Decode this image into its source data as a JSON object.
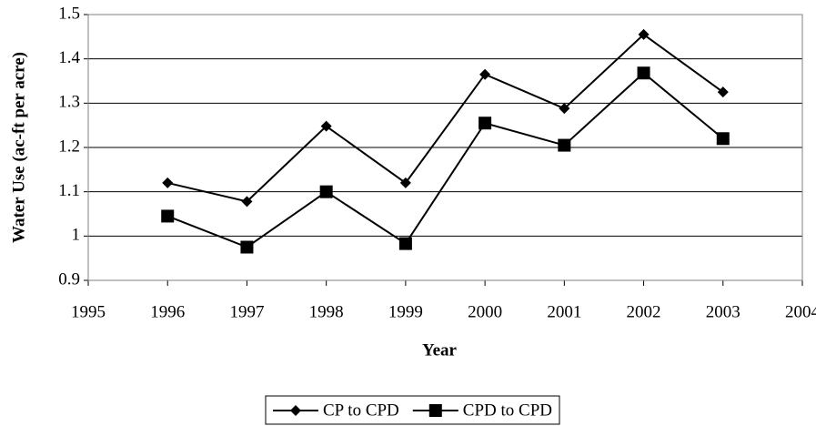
{
  "chart_data": {
    "type": "line",
    "x_label": "Year",
    "y_label": "Water Use (ac-ft per acre)",
    "x": [
      1996,
      1997,
      1998,
      1999,
      2000,
      2001,
      2002,
      2003
    ],
    "series": [
      {
        "name": "CP to CPD",
        "color": "#000000",
        "marker": "diamond",
        "values": [
          1.12,
          1.078,
          1.248,
          1.12,
          1.365,
          1.288,
          1.455,
          1.325
        ]
      },
      {
        "name": "CPD to CPD",
        "color": "#000000",
        "marker": "square",
        "values": [
          1.045,
          0.975,
          1.1,
          0.983,
          1.255,
          1.205,
          1.368,
          1.22
        ]
      }
    ],
    "xlim": [
      1995,
      2004
    ],
    "xticks": [
      1995,
      1996,
      1997,
      1998,
      1999,
      2000,
      2001,
      2002,
      2003,
      2004
    ],
    "ylim": [
      0.9,
      1.5
    ],
    "yticks": [
      0.9,
      1,
      1.1,
      1.2,
      1.3,
      1.4,
      1.5
    ],
    "grid": true,
    "legend": "bottom"
  }
}
